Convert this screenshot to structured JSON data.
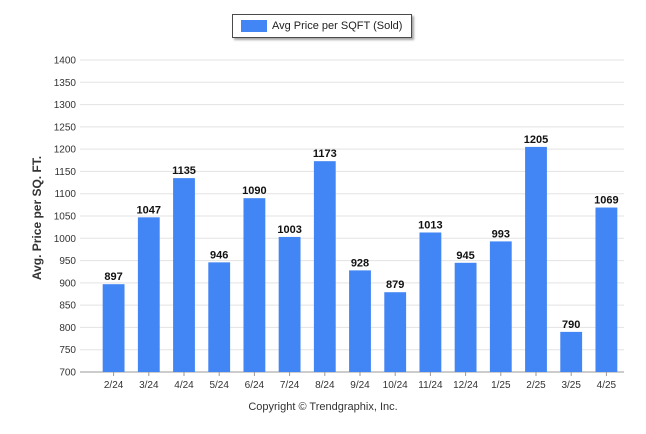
{
  "chart_data": {
    "type": "bar",
    "categories": [
      "2/24",
      "3/24",
      "4/24",
      "5/24",
      "6/24",
      "7/24",
      "8/24",
      "9/24",
      "10/24",
      "11/24",
      "12/24",
      "1/25",
      "2/25",
      "3/25",
      "4/25"
    ],
    "series": [
      {
        "name": "Avg Price per SQFT (Sold)",
        "values": [
          897,
          1047,
          1135,
          946,
          1090,
          1003,
          1173,
          928,
          879,
          1013,
          945,
          993,
          1205,
          790,
          1069
        ]
      }
    ],
    "title": "",
    "xlabel": "",
    "ylabel": "Avg. Price per SQ. FT.",
    "ylim": [
      700,
      1400
    ],
    "yticks": [
      700,
      750,
      800,
      850,
      900,
      950,
      1000,
      1050,
      1100,
      1150,
      1200,
      1250,
      1300,
      1350,
      1400
    ],
    "grid": true,
    "legend_position": "top-center",
    "bar_color": "#4285f4"
  },
  "footer": {
    "copyright": "Copyright © Trendgraphix, Inc."
  }
}
